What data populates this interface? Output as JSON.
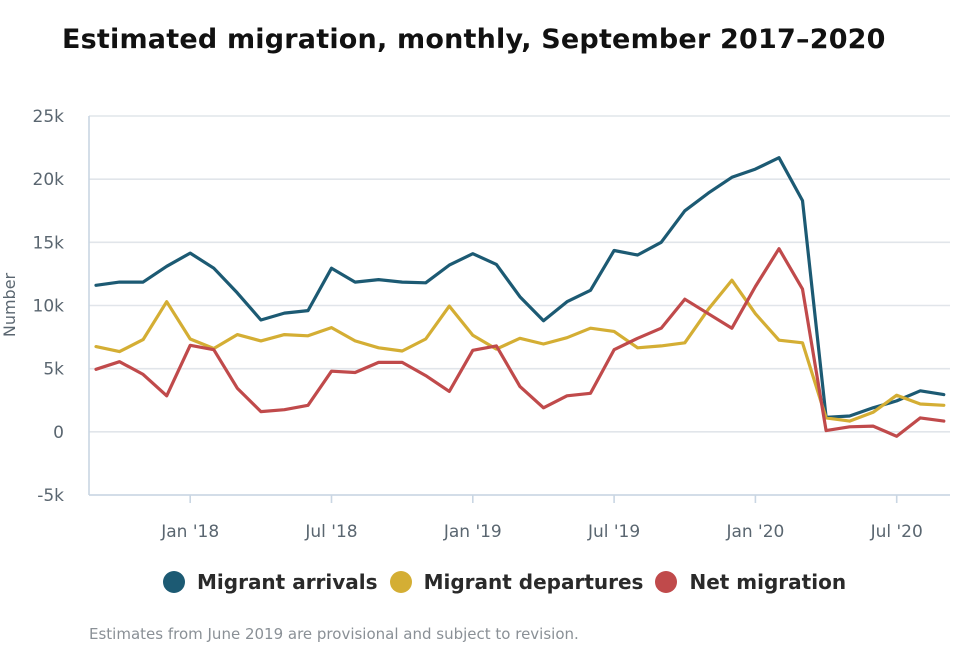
{
  "chart_data": {
    "type": "line",
    "title": "Estimated migration, monthly, September 2017–2020",
    "xlabel": "",
    "ylabel": "Number",
    "ylim": [
      -5000,
      25000
    ],
    "y_ticks": [
      -5000,
      0,
      5000,
      10000,
      15000,
      20000,
      25000
    ],
    "y_tick_labels": [
      "-5k",
      "0",
      "5k",
      "10k",
      "15k",
      "20k",
      "25k"
    ],
    "x_tick_labels": [
      {
        "label": "Jan '18",
        "index": 4
      },
      {
        "label": "Jul '18",
        "index": 10
      },
      {
        "label": "Jan '19",
        "index": 16
      },
      {
        "label": "Jul '19",
        "index": 22
      },
      {
        "label": "Jan '20",
        "index": 28
      },
      {
        "label": "Jul '20",
        "index": 34
      }
    ],
    "x_start": "Sep 2017",
    "x_end": "Sep 2020",
    "grid": true,
    "series": [
      {
        "name": "Migrant arrivals",
        "color": "#1c5a73",
        "values": [
          11600,
          11850,
          11850,
          13100,
          14150,
          12950,
          11000,
          8850,
          9400,
          9600,
          12950,
          11850,
          12050,
          11850,
          11800,
          13200,
          14100,
          13250,
          10700,
          8800,
          10300,
          11200,
          14350,
          14000,
          15000,
          17500,
          18900,
          20150,
          20800,
          21700,
          18300,
          1150,
          1250,
          1900,
          2450,
          3250,
          2950
        ]
      },
      {
        "name": "Migrant departures",
        "color": "#d4ae34",
        "values": [
          6750,
          6350,
          7300,
          10300,
          7350,
          6600,
          7700,
          7200,
          7700,
          7600,
          8250,
          7200,
          6650,
          6400,
          7350,
          9950,
          7650,
          6550,
          7400,
          6950,
          7450,
          8200,
          7950,
          6650,
          6800,
          7050,
          9700,
          12000,
          9350,
          7250,
          7050,
          1100,
          850,
          1550,
          2900,
          2200,
          2100
        ]
      },
      {
        "name": "Net migration",
        "color": "#c04a4b",
        "values": [
          4950,
          5550,
          4550,
          2850,
          6850,
          6500,
          3450,
          1600,
          1750,
          2100,
          4800,
          4700,
          5500,
          5500,
          4450,
          3200,
          6450,
          6800,
          3600,
          1900,
          2850,
          3050,
          6500,
          7400,
          8200,
          10500,
          9350,
          8200,
          11500,
          14500,
          11300,
          100,
          400,
          450,
          -350,
          1100,
          850
        ]
      }
    ]
  },
  "legend": {
    "items": [
      {
        "label": "Migrant arrivals",
        "color": "#1c5a73"
      },
      {
        "label": "Migrant departures",
        "color": "#d4ae34"
      },
      {
        "label": "Net migration",
        "color": "#c04a4b"
      }
    ]
  },
  "footnote": "Estimates from June 2019 are provisional and subject to revision."
}
